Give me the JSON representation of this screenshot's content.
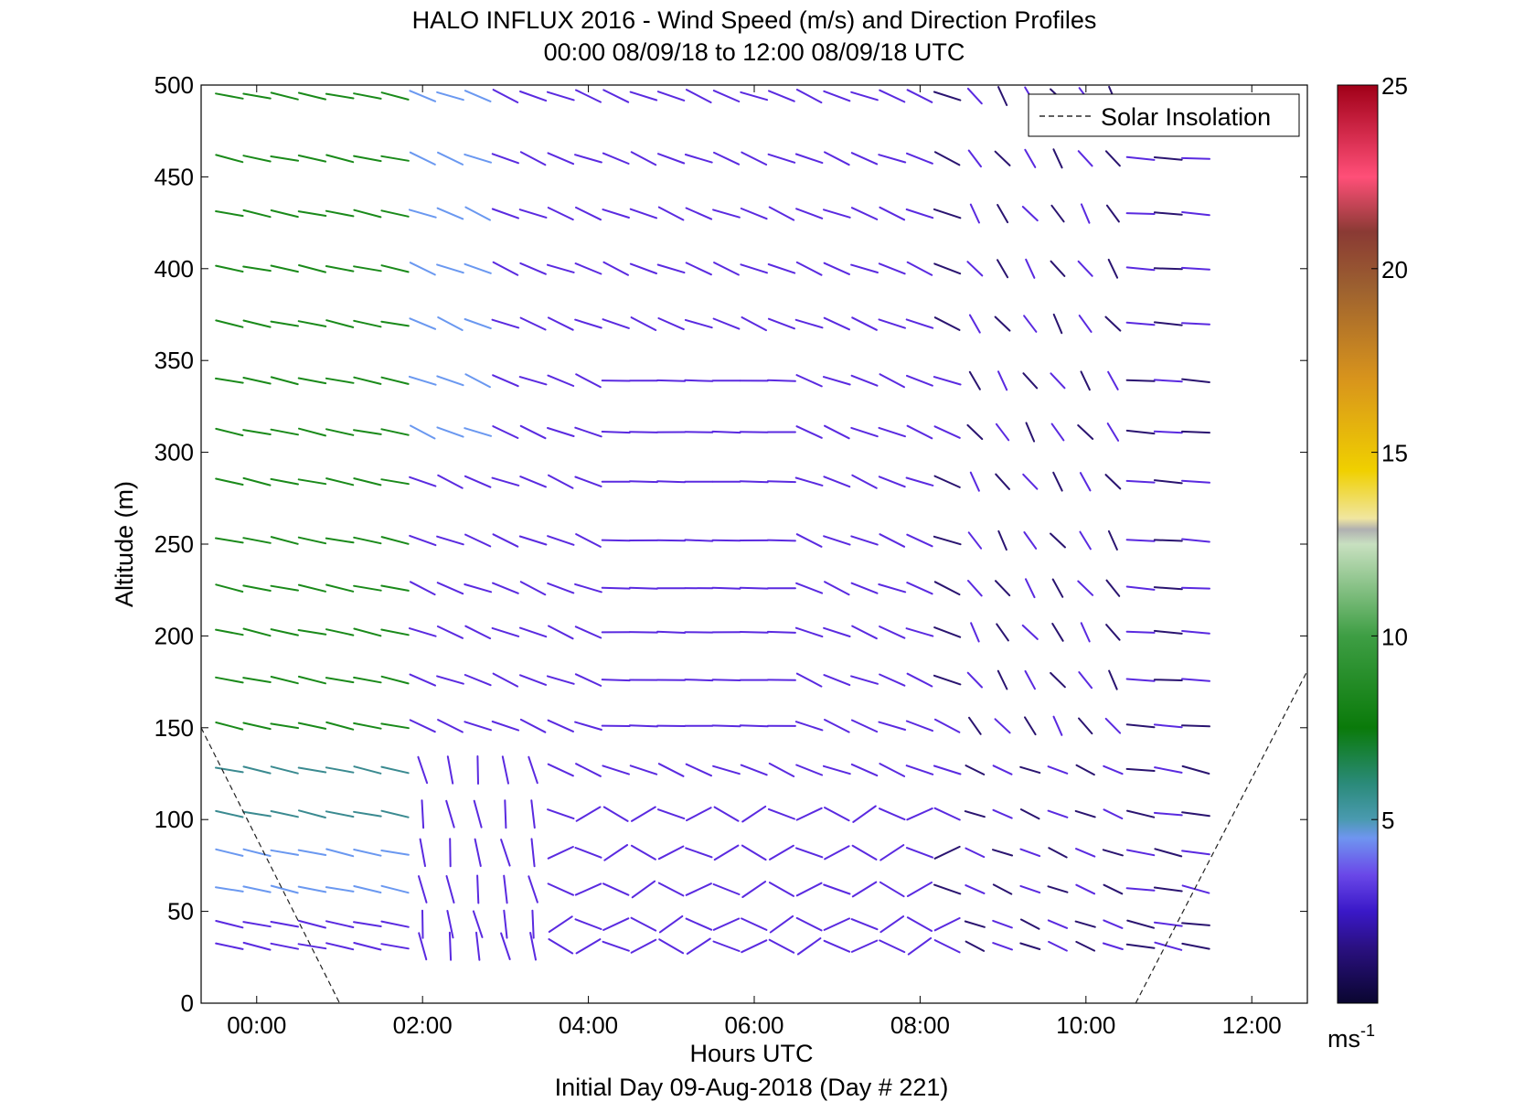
{
  "chart_data": {
    "type": "wind-barb-profile",
    "title": "HALO INFLUX 2016 - Wind Speed (m/s) and Direction Profiles",
    "subtitle": "00:00 08/09/18 to 12:00 08/09/18  UTC",
    "xlabel": "Hours UTC",
    "xlabel2": "Initial Day 09-Aug-2018 (Day # 221)",
    "ylabel": "Altitude (m)",
    "xlim": [
      -0.67,
      12.67
    ],
    "ylim": [
      0,
      500
    ],
    "x_ticks": [
      0,
      2,
      4,
      6,
      8,
      10,
      12
    ],
    "x_tick_labels": [
      "00:00",
      "02:00",
      "04:00",
      "06:00",
      "08:00",
      "10:00",
      "12:00"
    ],
    "y_ticks": [
      0,
      50,
      100,
      150,
      200,
      250,
      300,
      350,
      400,
      450,
      500
    ],
    "y_tick_labels": [
      "0",
      "50",
      "100",
      "150",
      "200",
      "250",
      "300",
      "350",
      "400",
      "450",
      "500"
    ],
    "altitudes": [
      31,
      43,
      62,
      82,
      103,
      127,
      151,
      176,
      202,
      226,
      252,
      284,
      311,
      339,
      370,
      400,
      430,
      460,
      494
    ],
    "time_start": -0.33,
    "time_step": 0.333,
    "time_count": 36,
    "legend": {
      "label": "Solar Insolation",
      "position": "top-right"
    },
    "solar_insolation": [
      {
        "x": [
          -0.67,
          1.0
        ],
        "y": [
          150,
          0
        ]
      },
      {
        "x": [
          10.6,
          12.67
        ],
        "y": [
          0,
          181
        ]
      }
    ],
    "colorbar": {
      "min": 0,
      "max": 25,
      "ticks": [
        5,
        10,
        15,
        20,
        25
      ],
      "tick_labels": [
        "5",
        "10",
        "15",
        "20",
        "25"
      ],
      "unit_label": "ms",
      "unit_exponent": "-1",
      "stops": [
        {
          "v": 0,
          "c": "#0a0630"
        },
        {
          "v": 1.5,
          "c": "#2a1080"
        },
        {
          "v": 2.5,
          "c": "#3a18c8"
        },
        {
          "v": 3.5,
          "c": "#6a48e8"
        },
        {
          "v": 4.5,
          "c": "#6f95f0"
        },
        {
          "v": 5.0,
          "c": "#4a9ab0"
        },
        {
          "v": 6.0,
          "c": "#2a8a78"
        },
        {
          "v": 7.5,
          "c": "#0a7a0a"
        },
        {
          "v": 10,
          "c": "#3e9e44"
        },
        {
          "v": 12.5,
          "c": "#c8e0c0"
        },
        {
          "v": 12.9,
          "c": "#b0b0b0"
        },
        {
          "v": 13.2,
          "c": "#f0e6a0"
        },
        {
          "v": 14.5,
          "c": "#f0d000"
        },
        {
          "v": 17,
          "c": "#d8941c"
        },
        {
          "v": 19.5,
          "c": "#9c6030"
        },
        {
          "v": 21,
          "c": "#8a3a34"
        },
        {
          "v": 22.5,
          "c": "#ff4f78"
        },
        {
          "v": 25,
          "c": "#a00018"
        }
      ]
    },
    "vector_colors": {
      "green": "#1a8a1a",
      "teal": "#3a8a90",
      "lightblue": "#6a98f0",
      "purple": "#5a2ae0",
      "darkpurple": "#2a1470"
    }
  }
}
